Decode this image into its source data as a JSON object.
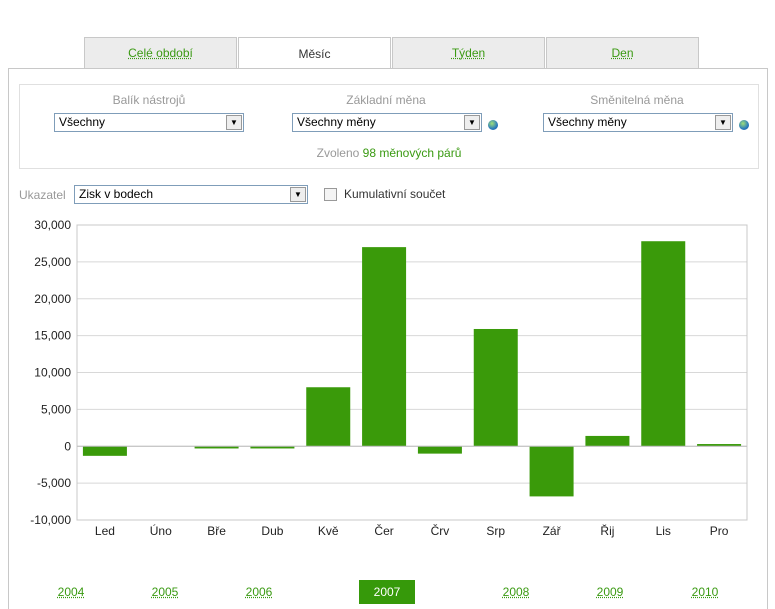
{
  "tabs": [
    {
      "label": "Celé období",
      "active": false
    },
    {
      "label": "Měsíc",
      "active": true
    },
    {
      "label": "Týden",
      "active": false
    },
    {
      "label": "Den",
      "active": false
    }
  ],
  "filters": {
    "toolkit": {
      "label": "Balík nástrojů",
      "value": "Všechny"
    },
    "base_currency": {
      "label": "Základní měna",
      "value": "Všechny měny"
    },
    "quote_currency": {
      "label": "Směnitelná měna",
      "value": "Všechny měny"
    },
    "selected_prefix": "Zvoleno",
    "selected_count": "98 měnových párů"
  },
  "indicator": {
    "label": "Ukazatel",
    "value": "Zisk v bodech",
    "cumulative_label": "Kumulativní součet",
    "cumulative_checked": false
  },
  "chart_data": {
    "type": "bar",
    "categories": [
      "Led",
      "Úno",
      "Bře",
      "Dub",
      "Kvě",
      "Čer",
      "Črv",
      "Srp",
      "Zář",
      "Řij",
      "Lis",
      "Pro"
    ],
    "values": [
      -1300,
      0,
      -300,
      -300,
      8000,
      27000,
      -1000,
      15900,
      -6800,
      1400,
      27800,
      300
    ],
    "ylim": [
      -10000,
      30000
    ],
    "yticks": [
      "-10,000",
      "-5,000",
      "0",
      "5,000",
      "10,000",
      "15,000",
      "20,000",
      "25,000",
      "30,000"
    ],
    "ytick_values": [
      -10000,
      -5000,
      0,
      5000,
      10000,
      15000,
      20000,
      25000,
      30000
    ],
    "grid": true,
    "bar_color": "#3a9a0a"
  },
  "years": [
    {
      "label": "2004",
      "active": false
    },
    {
      "label": "2005",
      "active": false
    },
    {
      "label": "2006",
      "active": false
    },
    {
      "label": "2007",
      "active": true
    },
    {
      "label": "2008",
      "active": false
    },
    {
      "label": "2009",
      "active": false
    },
    {
      "label": "2010",
      "active": false
    }
  ]
}
